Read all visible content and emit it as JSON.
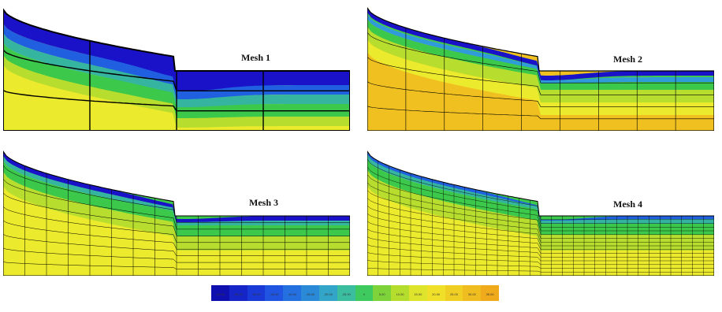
{
  "meshes": [
    {
      "label": "Mesh 1",
      "cols": 4,
      "rows": 3
    },
    {
      "label": "Mesh 2",
      "cols": 9,
      "rows": 5
    },
    {
      "label": "Mesh 3",
      "cols": 16,
      "rows": 9
    },
    {
      "label": "Mesh 4",
      "cols": 32,
      "rows": 16
    }
  ],
  "colors": {
    "deep_blue": "#1a12c8",
    "blue": "#1f5fe0",
    "light_blue": "#2f9bd8",
    "teal": "#35b5a0",
    "green": "#3cc84a",
    "yellow_green": "#b7dd2e",
    "yellow": "#ecea2c",
    "orange_yellow": "#f0c021",
    "orange": "#f0a818"
  },
  "legend": {
    "colors": [
      "#1010b0",
      "#1525c8",
      "#1a3ad8",
      "#1f55e0",
      "#2470e0",
      "#2a8ad8",
      "#33a5c8",
      "#3bbda0",
      "#3fca60",
      "#7ed33a",
      "#b5dd2e",
      "#dde42b",
      "#f0e02a",
      "#f0cf25",
      "#f0bd20",
      "#f0ab1c"
    ],
    "ticks": [
      "-60.00",
      "-55.00",
      "-50.00",
      "-45.00",
      "-40.00",
      "-35.00",
      "-30.00",
      "-25.00",
      "0",
      "5.00",
      "10.00",
      "15.00",
      "20.00",
      "25.00",
      "30.00",
      "35.00"
    ]
  }
}
